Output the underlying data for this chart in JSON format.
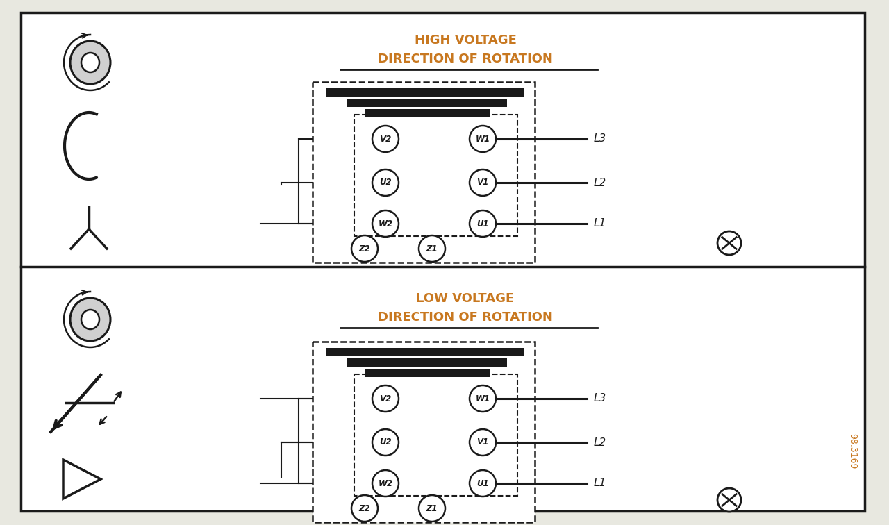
{
  "bg_color": "#ffffff",
  "border_color": "#1a1a1a",
  "title_color": "#c87820",
  "line_color": "#1a1a1a",
  "high_voltage_title": "HIGH VOLTAGE",
  "high_voltage_subtitle": "DIRECTION OF ROTATION",
  "low_voltage_title": "LOW VOLTAGE",
  "low_voltage_subtitle": "DIRECTION OF ROTATION",
  "ref_number": "98.3169",
  "panel_bg": "#f8f8f4",
  "outer_bg": "#e8e8e0"
}
